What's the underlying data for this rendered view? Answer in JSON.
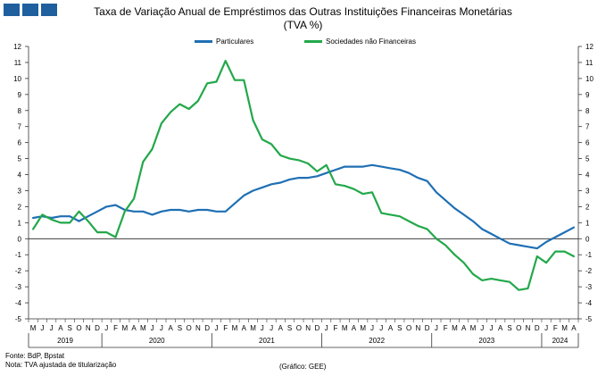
{
  "brand": {
    "icon": "bdp-logo-icon",
    "color": "#1f5f9e"
  },
  "title": {
    "line1": "Taxa de Variação Anual de Empréstimos das Outras Instituições Financeiras Monetárias",
    "line2": "(TVA %)"
  },
  "footer": {
    "source": "Fonte: BdP, Bpstat",
    "note": "Nota: TVA ajustada de titularização",
    "credit": "(Gráfico: GEE)"
  },
  "chart_data": {
    "type": "line",
    "months": [
      "M",
      "J",
      "J",
      "A",
      "S",
      "O",
      "N",
      "D",
      "J",
      "F",
      "M",
      "A",
      "M",
      "J",
      "J",
      "A",
      "S",
      "O",
      "N",
      "D",
      "J",
      "F",
      "M",
      "A",
      "M",
      "J",
      "J",
      "A",
      "S",
      "O",
      "N",
      "D",
      "J",
      "F",
      "M",
      "A",
      "M",
      "J",
      "J",
      "A",
      "S",
      "O",
      "N",
      "D",
      "J",
      "F",
      "M",
      "A",
      "M",
      "J",
      "J",
      "A",
      "S",
      "O",
      "N",
      "D",
      "J",
      "F",
      "M",
      "A"
    ],
    "years": [
      {
        "label": "2019",
        "start": 0,
        "end": 8
      },
      {
        "label": "2020",
        "start": 8,
        "end": 20
      },
      {
        "label": "2021",
        "start": 20,
        "end": 32
      },
      {
        "label": "2022",
        "start": 32,
        "end": 44
      },
      {
        "label": "2023",
        "start": 44,
        "end": 56
      },
      {
        "label": "2024",
        "start": 56,
        "end": 60
      }
    ],
    "ylim": [
      -5,
      12
    ],
    "yticks": [
      "12",
      "11",
      "10",
      "9",
      "8",
      "7",
      "6",
      "5",
      "4",
      "3",
      "2",
      "1",
      "0",
      "-1",
      "-2",
      "-3",
      "-4",
      "-5"
    ],
    "grid": false,
    "legend_position": "top-center",
    "series": [
      {
        "name": "Particulares",
        "color": "#1f6fb4",
        "values": [
          1.3,
          1.4,
          1.3,
          1.4,
          1.4,
          1.1,
          1.4,
          1.7,
          2.0,
          2.1,
          1.8,
          1.7,
          1.7,
          1.5,
          1.7,
          1.8,
          1.8,
          1.7,
          1.8,
          1.8,
          1.7,
          1.7,
          2.2,
          2.7,
          3.0,
          3.2,
          3.4,
          3.5,
          3.7,
          3.8,
          3.8,
          3.9,
          4.1,
          4.3,
          4.5,
          4.5,
          4.5,
          4.6,
          4.5,
          4.4,
          4.3,
          4.1,
          3.8,
          3.6,
          2.9,
          2.4,
          1.9,
          1.5,
          1.1,
          0.6,
          0.3,
          0.0,
          -0.3,
          -0.4,
          -0.5,
          -0.6,
          -0.2,
          0.1,
          0.4,
          0.7
        ]
      },
      {
        "name": "Sociedades não Financeiras",
        "color": "#22a84a",
        "values": [
          0.6,
          1.5,
          1.2,
          1.0,
          1.0,
          1.7,
          1.1,
          0.4,
          0.4,
          0.1,
          1.7,
          2.5,
          4.8,
          5.6,
          7.2,
          7.9,
          8.4,
          8.1,
          8.6,
          9.7,
          9.8,
          11.1,
          9.9,
          9.9,
          7.4,
          6.2,
          5.9,
          5.2,
          5.0,
          4.9,
          4.7,
          4.2,
          4.6,
          3.4,
          3.3,
          3.1,
          2.8,
          2.9,
          1.6,
          1.5,
          1.4,
          1.1,
          0.8,
          0.6,
          0.0,
          -0.4,
          -1.0,
          -1.5,
          -2.2,
          -2.6,
          -2.5,
          -2.6,
          -2.7,
          -3.2,
          -3.1,
          -1.1,
          -1.5,
          -0.8,
          -0.8,
          -1.1
        ]
      }
    ]
  }
}
